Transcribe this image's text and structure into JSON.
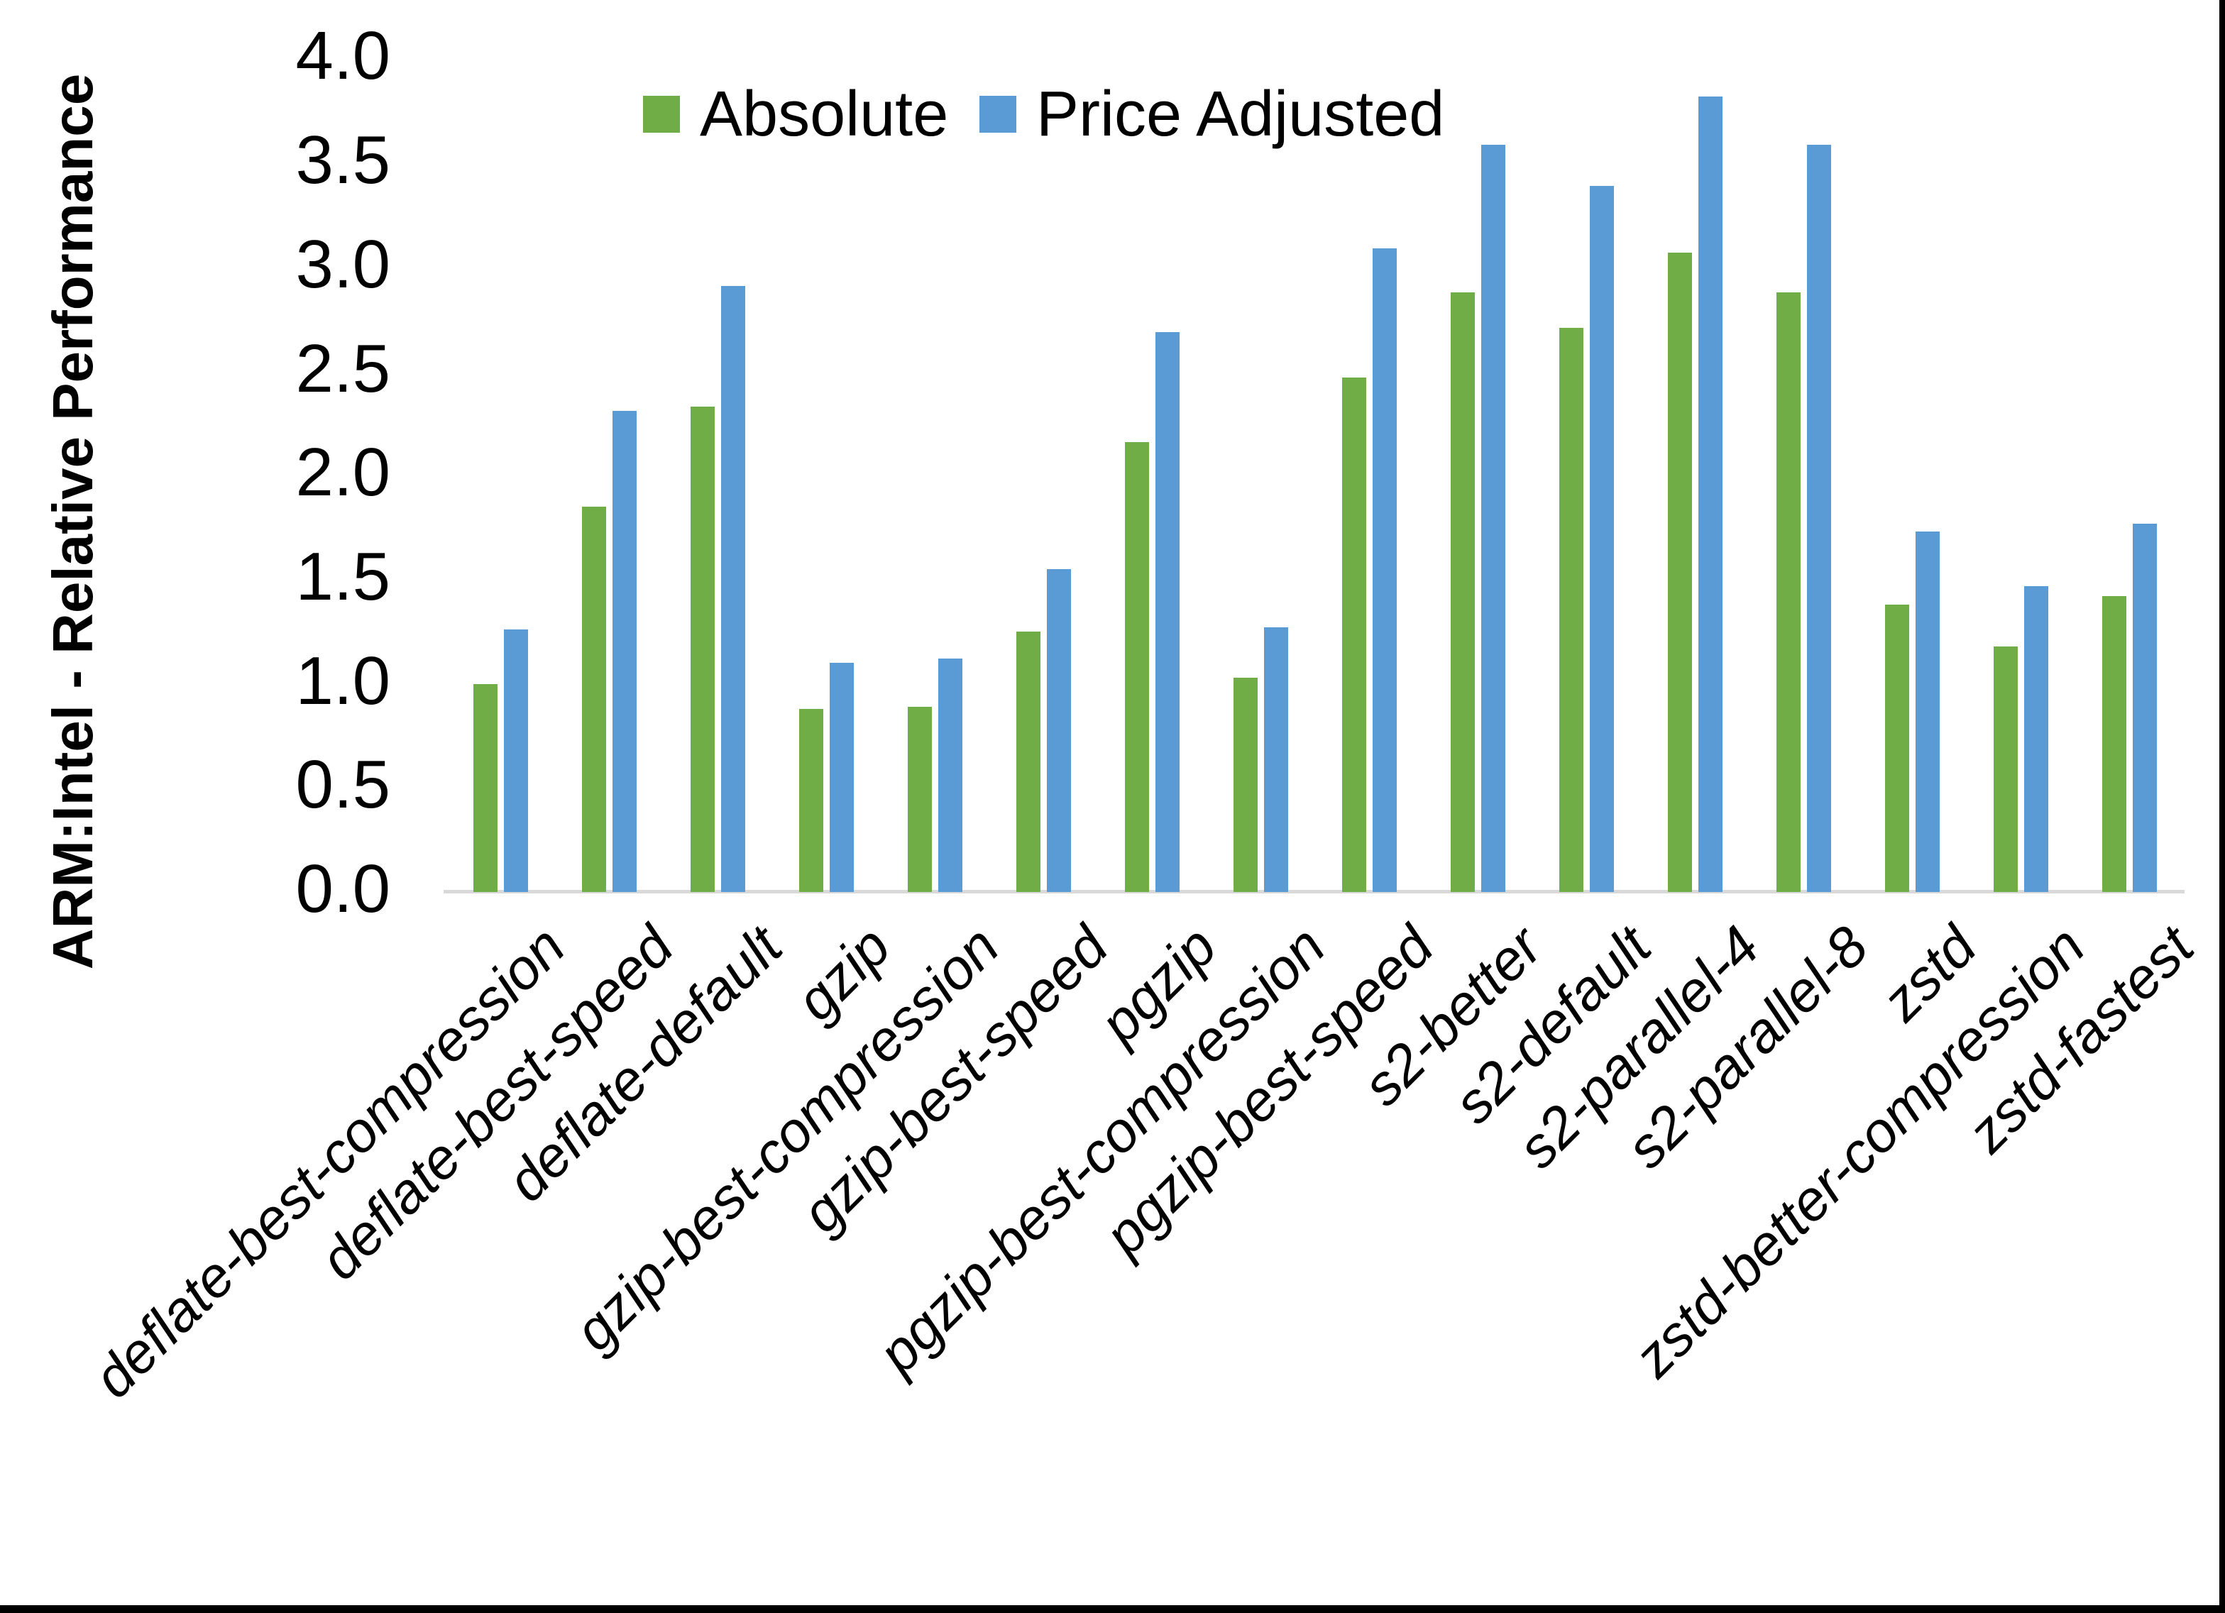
{
  "chart_data": {
    "type": "bar",
    "title": "",
    "xlabel": "",
    "ylabel": "ARM:Intel - Relative Performance",
    "ylim": [
      0.0,
      4.0
    ],
    "ytick_labels": [
      "0.0",
      "0.5",
      "1.0",
      "1.5",
      "2.0",
      "2.5",
      "3.0",
      "3.5",
      "4.0"
    ],
    "grid": false,
    "legend_position": "top-center",
    "categories": [
      "deflate-best-compression",
      "deflate-best-speed",
      "deflate-default",
      "gzip",
      "gzip-best-compression",
      "gzip-best-speed",
      "pgzip",
      "pgzip-best-compression",
      "pgzip-best-speed",
      "s2-better",
      "s2-default",
      "s2-parallel-4",
      "s2-parallel-8",
      "zstd",
      "zstd-better-compression",
      "zstd-fastest"
    ],
    "series": [
      {
        "name": "Absolute",
        "color": "#70AD47",
        "values": [
          1.0,
          1.85,
          2.33,
          0.88,
          0.89,
          1.25,
          2.16,
          1.03,
          2.47,
          2.88,
          2.71,
          3.07,
          2.88,
          1.38,
          1.18,
          1.42
        ]
      },
      {
        "name": "Price Adjusted",
        "color": "#5B9BD5",
        "values": [
          1.26,
          2.31,
          2.91,
          1.1,
          1.12,
          1.55,
          2.69,
          1.27,
          3.09,
          3.59,
          3.39,
          3.82,
          3.59,
          1.73,
          1.47,
          1.77
        ]
      }
    ],
    "axis_color": "#d9d9d9",
    "text_color": "#000000"
  }
}
